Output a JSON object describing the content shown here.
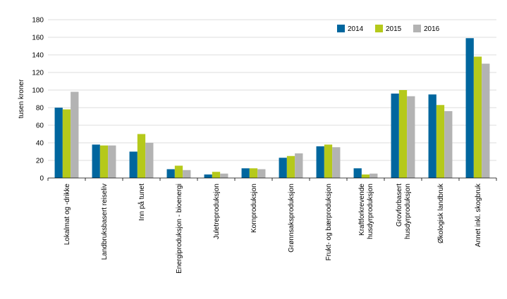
{
  "chart_data": {
    "type": "bar",
    "ylabel": "tusen kroner",
    "xlabel": "",
    "title": "",
    "ylim": [
      0,
      180
    ],
    "yticks": [
      0,
      20,
      40,
      60,
      80,
      100,
      120,
      140,
      160,
      180
    ],
    "grid": "horizontal",
    "legend_position": "top-right",
    "categories": [
      "Lokalmat og -drikke",
      "Landbruksbasert reiseliv",
      "Inn på tunet",
      "Energiproduksjon - bioenergi",
      "Juletreproduksjon",
      "Kornproduksjon",
      "Grønnsaksproduksjon",
      "Frukt- og bærproduksjon",
      "Kraftforkrevende husdyrproduksjon",
      "Grovforbasert husdyrproduksjon",
      "Økologisk landbruk",
      "Annet inkl. skogbruk"
    ],
    "category_lines": [
      [
        "Lokalmat og -drikke"
      ],
      [
        "Landbruksbasert reiseliv"
      ],
      [
        "Inn på tunet"
      ],
      [
        "Energiproduksjon - bioenergi"
      ],
      [
        "Juletreproduksjon"
      ],
      [
        "Kornproduksjon"
      ],
      [
        "Grønnsaksproduksjon"
      ],
      [
        "Frukt- og bærproduksjon"
      ],
      [
        "Kraftforkrevende",
        "husdyrproduksjon"
      ],
      [
        "Grovforbasert",
        "husdyrproduksjon"
      ],
      [
        "Økologisk landbruk"
      ],
      [
        "Annet inkl. skogbruk"
      ]
    ],
    "series": [
      {
        "name": "2014",
        "color": "#00669e",
        "values": [
          80,
          38,
          30,
          10,
          4,
          11,
          23,
          36,
          11,
          96,
          95,
          159
        ]
      },
      {
        "name": "2015",
        "color": "#b5c91b",
        "values": [
          78,
          37,
          50,
          14,
          7,
          11,
          25,
          38,
          4,
          100,
          83,
          138
        ]
      },
      {
        "name": "2016",
        "color": "#b3b3b3",
        "values": [
          98,
          37,
          40,
          9,
          5,
          10,
          28,
          35,
          5,
          93,
          76,
          130
        ]
      }
    ]
  }
}
